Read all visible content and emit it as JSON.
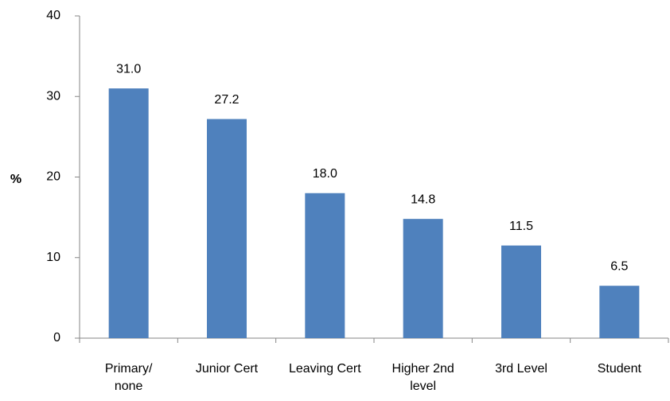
{
  "chart_data": {
    "type": "bar",
    "y_label": "%",
    "categories": [
      "Primary/ none",
      "Junior Cert",
      "Leaving Cert",
      "Higher 2nd level",
      "3rd Level",
      "Student"
    ],
    "values": [
      31.0,
      27.2,
      18.0,
      14.8,
      11.5,
      6.5
    ],
    "value_labels": [
      "31.0",
      "27.2",
      "18.0",
      "14.8",
      "11.5",
      "6.5"
    ],
    "color": "#4f81bd",
    "ylim": [
      0,
      40
    ],
    "yticks": [
      0,
      10,
      20,
      30,
      40
    ],
    "grid": false
  }
}
